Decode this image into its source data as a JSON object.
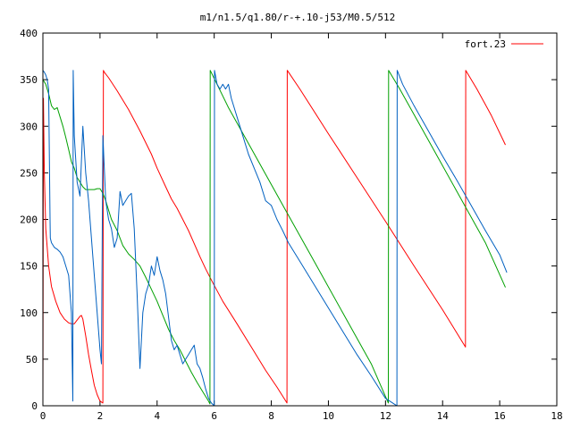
{
  "chart_data": {
    "type": "line",
    "title": "m1/n1.5/q1.80/r-+.10-j53/M0.5/512",
    "xlabel": "",
    "ylabel": "",
    "xlim": [
      0,
      18
    ],
    "ylim": [
      0,
      400
    ],
    "xticks": [
      "0",
      "2",
      "4",
      "6",
      "8",
      "10",
      "12",
      "14",
      "16",
      "18"
    ],
    "yticks": [
      "0",
      "50",
      "100",
      "150",
      "200",
      "250",
      "300",
      "350",
      "400"
    ],
    "grid": false,
    "legend_position": "top-right",
    "series": [
      {
        "name": "fort.23",
        "color": "#ff0000",
        "x": [
          0,
          0.02,
          0.05,
          0.1,
          0.2,
          0.3,
          0.45,
          0.6,
          0.75,
          0.9,
          1.0,
          1.1,
          1.2,
          1.3,
          1.35,
          1.4,
          1.5,
          1.6,
          1.7,
          1.8,
          1.9,
          2.0,
          2.1,
          2.12,
          2.15,
          2.3,
          2.6,
          3.0,
          3.4,
          3.8,
          4.0,
          4.3,
          4.5,
          4.7,
          4.9,
          5.1,
          5.3,
          5.5,
          5.7,
          5.9,
          6.3,
          6.8,
          7.3,
          7.8,
          8.2,
          8.55,
          8.56,
          9.0,
          10.0,
          11.0,
          12.0,
          13.0,
          14.0,
          14.8,
          14.81,
          15.2,
          15.7,
          16.2
        ],
        "y": [
          0,
          330,
          250,
          190,
          150,
          128,
          112,
          100,
          93,
          89,
          88,
          88,
          92,
          96,
          97,
          93,
          75,
          55,
          38,
          22,
          12,
          5,
          3,
          360,
          358,
          352,
          338,
          318,
          295,
          270,
          255,
          235,
          222,
          212,
          200,
          188,
          174,
          160,
          147,
          135,
          112,
          88,
          63,
          38,
          20,
          3,
          360,
          340,
          292,
          245,
          198,
          150,
          103,
          63,
          360,
          340,
          312,
          280
        ]
      },
      {
        "name": "",
        "color": "#00a000",
        "x": [
          0,
          0.1,
          0.2,
          0.3,
          0.4,
          0.5,
          0.6,
          0.7,
          0.8,
          0.9,
          1.0,
          1.1,
          1.2,
          1.3,
          1.4,
          1.5,
          1.6,
          1.7,
          1.8,
          1.9,
          2.0,
          2.1,
          2.2,
          2.3,
          2.4,
          2.6,
          2.8,
          3.0,
          3.2,
          3.4,
          3.6,
          3.8,
          4.0,
          4.2,
          4.4,
          4.6,
          4.8,
          5.0,
          5.2,
          5.4,
          5.6,
          5.8,
          5.85,
          5.86,
          6.5,
          7.5,
          8.5,
          9.5,
          10.5,
          11.5,
          12.1,
          12.11,
          12.5,
          13.5,
          14.5,
          15.5,
          16.2
        ],
        "y": [
          350,
          345,
          335,
          322,
          318,
          320,
          310,
          300,
          288,
          275,
          262,
          255,
          245,
          240,
          235,
          232,
          232,
          232,
          232,
          233,
          233,
          228,
          220,
          210,
          200,
          188,
          172,
          163,
          157,
          150,
          138,
          125,
          112,
          97,
          82,
          70,
          60,
          48,
          36,
          25,
          15,
          5,
          2,
          360,
          320,
          265,
          210,
          155,
          100,
          45,
          3,
          360,
          340,
          285,
          230,
          175,
          127
        ]
      },
      {
        "name": "",
        "color": "#0060c0",
        "x": [
          0,
          0.05,
          0.1,
          0.15,
          0.2,
          0.25,
          0.26,
          0.3,
          0.4,
          0.5,
          0.6,
          0.7,
          0.8,
          0.9,
          1.0,
          1.05,
          1.06,
          1.1,
          1.2,
          1.3,
          1.4,
          1.5,
          1.6,
          1.7,
          1.8,
          1.9,
          2.0,
          2.05,
          2.1,
          2.2,
          2.3,
          2.4,
          2.5,
          2.6,
          2.7,
          2.8,
          2.9,
          3.0,
          3.1,
          3.2,
          3.3,
          3.4,
          3.5,
          3.6,
          3.7,
          3.8,
          3.9,
          4.0,
          4.1,
          4.2,
          4.3,
          4.4,
          4.5,
          4.6,
          4.7,
          4.8,
          4.9,
          5.0,
          5.1,
          5.2,
          5.3,
          5.4,
          5.5,
          5.6,
          5.7,
          5.8,
          5.9,
          6.0,
          6.01,
          6.1,
          6.2,
          6.3,
          6.4,
          6.5,
          6.6,
          6.8,
          7.0,
          7.2,
          7.4,
          7.6,
          7.8,
          8.0,
          8.2,
          8.4,
          8.6,
          8.8,
          9.0,
          9.5,
          10.0,
          10.5,
          11.0,
          11.5,
          12.0,
          12.3,
          12.4,
          12.41,
          12.6,
          13.0,
          13.5,
          14.0,
          14.5,
          15.0,
          15.5,
          16.0,
          16.25
        ],
        "y": [
          360,
          358,
          355,
          350,
          340,
          200,
          180,
          175,
          170,
          168,
          165,
          160,
          150,
          140,
          100,
          5,
          360,
          290,
          240,
          225,
          300,
          250,
          220,
          180,
          140,
          100,
          60,
          45,
          290,
          220,
          200,
          190,
          170,
          180,
          230,
          215,
          220,
          225,
          228,
          190,
          120,
          40,
          100,
          120,
          130,
          150,
          140,
          160,
          145,
          135,
          120,
          95,
          70,
          60,
          65,
          55,
          45,
          50,
          55,
          60,
          65,
          45,
          40,
          30,
          18,
          8,
          3,
          0,
          360,
          345,
          340,
          345,
          340,
          345,
          330,
          310,
          290,
          270,
          255,
          240,
          220,
          215,
          200,
          188,
          175,
          165,
          155,
          130,
          105,
          80,
          55,
          32,
          8,
          2,
          0,
          360,
          345,
          322,
          295,
          268,
          242,
          215,
          188,
          162,
          143
        ]
      }
    ]
  }
}
